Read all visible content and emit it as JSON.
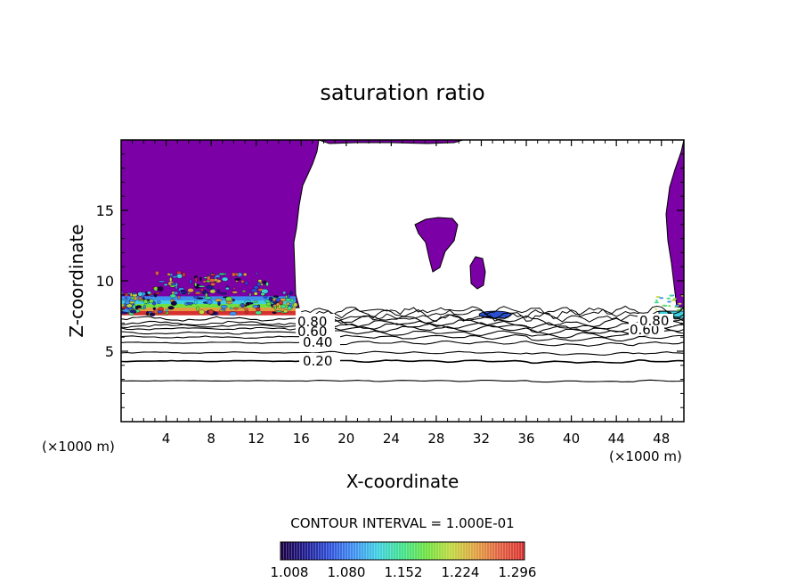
{
  "chart_data": {
    "type": "contour",
    "title": "saturation ratio",
    "xlabel": "X-coordinate",
    "ylabel": "Z-coordinate",
    "x_unit_left": "(×1000 m)",
    "x_unit_right": "(×1000 m)",
    "xlim": [
      0,
      50
    ],
    "ylim": [
      0,
      20
    ],
    "x_ticks": [
      4,
      8,
      12,
      16,
      20,
      24,
      28,
      32,
      36,
      40,
      44,
      48
    ],
    "y_ticks": [
      5,
      10,
      15
    ],
    "grid": false,
    "contour_interval_text": "CONTOUR INTERVAL = 1.000E-01",
    "contour_labels": [
      {
        "text": "0.20",
        "x": 17.5,
        "z": 4.3
      },
      {
        "text": "0.40",
        "x": 16.8,
        "z": 5.6
      },
      {
        "text": "0.60",
        "x": 16.5,
        "z": 6.3
      },
      {
        "text": "0.80",
        "x": 16.3,
        "z": 6.8
      },
      {
        "text": "0.60",
        "x": 45.0,
        "z": 6.5
      },
      {
        "text": "0.80",
        "x": 45.5,
        "z": 7.0
      }
    ],
    "contour_levels_z": [
      {
        "level": 0.1,
        "z": 2.9
      },
      {
        "level": 0.2,
        "z": 4.3
      },
      {
        "level": 0.3,
        "z": 4.9
      },
      {
        "level": 0.4,
        "z": 5.6
      },
      {
        "level": 0.5,
        "z": 6.0
      },
      {
        "level": 0.6,
        "z": 6.3
      },
      {
        "level": 0.7,
        "z": 6.6
      },
      {
        "level": 0.8,
        "z": 6.8
      },
      {
        "level": 0.9,
        "z": 7.0
      },
      {
        "level": 1.0,
        "z": 7.3
      }
    ],
    "colorbar": {
      "tick_labels": [
        "1.008",
        "1.080",
        "1.152",
        "1.224",
        "1.296"
      ],
      "colors": [
        "#1a0040",
        "#1e1a8c",
        "#2f4fd8",
        "#3f8ff0",
        "#3fd0e0",
        "#40e08a",
        "#6fe040",
        "#c0d840",
        "#e0a040",
        "#e06040",
        "#d83030"
      ]
    },
    "colors": {
      "supersaturated_fill": "#7b00a6",
      "contour_line": "#000000"
    }
  }
}
